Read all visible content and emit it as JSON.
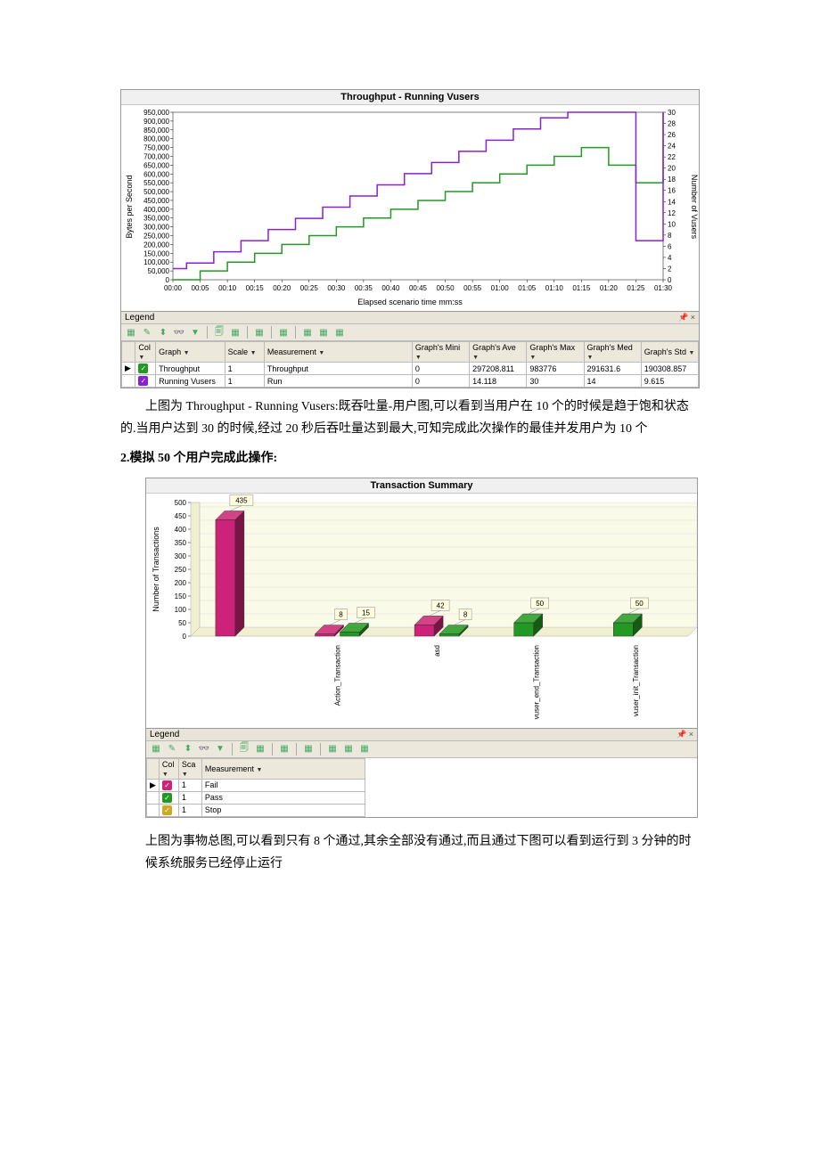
{
  "chart1": {
    "title": "Throughput - Running Vusers",
    "y1_label": "Bytes per Second",
    "y2_label": "Number of Vusers",
    "x_label": "Elapsed scenario time mm:ss",
    "y1_ticks": [
      "0",
      "50,000",
      "100,000",
      "150,000",
      "200,000",
      "250,000",
      "300,000",
      "350,000",
      "400,000",
      "450,000",
      "500,000",
      "550,000",
      "600,000",
      "650,000",
      "700,000",
      "750,000",
      "800,000",
      "850,000",
      "900,000",
      "950,000"
    ],
    "y2_ticks": [
      "0",
      "2",
      "4",
      "6",
      "8",
      "10",
      "12",
      "14",
      "16",
      "18",
      "20",
      "22",
      "24",
      "26",
      "28",
      "30"
    ],
    "x_ticks": [
      "00:00",
      "00:05",
      "00:10",
      "00:15",
      "00:20",
      "00:25",
      "00:30",
      "00:35",
      "00:40",
      "00:45",
      "00:50",
      "00:55",
      "01:00",
      "01:05",
      "01:10",
      "01:15",
      "01:20",
      "01:25",
      "01:30"
    ],
    "throughput_color": "#229922",
    "vusers_color": "#8822cc",
    "throughput_data": [
      [
        0,
        0
      ],
      [
        1,
        50000
      ],
      [
        2,
        100000
      ],
      [
        3,
        150000
      ],
      [
        4,
        200000
      ],
      [
        5,
        250000
      ],
      [
        6,
        300000
      ],
      [
        7,
        350000
      ],
      [
        8,
        400000
      ],
      [
        9,
        450000
      ],
      [
        10,
        500000
      ],
      [
        11,
        550000
      ],
      [
        12,
        600000
      ],
      [
        13,
        650000
      ],
      [
        14,
        700000
      ],
      [
        15,
        750000
      ],
      [
        16,
        650000
      ],
      [
        17,
        550000
      ],
      [
        18,
        950000
      ]
    ],
    "vusers_data": [
      [
        0,
        2
      ],
      [
        0.5,
        3
      ],
      [
        1,
        3
      ],
      [
        1.5,
        5
      ],
      [
        2,
        5
      ],
      [
        2.5,
        7
      ],
      [
        3,
        7
      ],
      [
        3.5,
        9
      ],
      [
        4,
        9
      ],
      [
        4.5,
        11
      ],
      [
        5,
        11
      ],
      [
        5.5,
        13
      ],
      [
        6,
        13
      ],
      [
        6.5,
        15
      ],
      [
        7,
        15
      ],
      [
        7.5,
        17
      ],
      [
        8,
        17
      ],
      [
        8.5,
        19
      ],
      [
        9,
        19
      ],
      [
        9.5,
        21
      ],
      [
        10,
        21
      ],
      [
        10.5,
        23
      ],
      [
        11,
        23
      ],
      [
        11.5,
        25
      ],
      [
        12,
        25
      ],
      [
        12.5,
        27
      ],
      [
        13,
        27
      ],
      [
        13.5,
        29
      ],
      [
        14,
        29
      ],
      [
        14.5,
        30
      ],
      [
        15,
        30
      ],
      [
        17,
        7
      ],
      [
        18,
        30
      ]
    ],
    "legend_label": "Legend",
    "table_headers": [
      "",
      "Col",
      "Graph",
      "Scale",
      "Measurement",
      "Graph's Mini",
      "Graph's Ave",
      "Graph's Max",
      "Graph's Med",
      "Graph's Std"
    ],
    "table_rows": [
      {
        "check_color": "#229922",
        "col": "",
        "graph": "Throughput",
        "scale": "1",
        "measurement": "Throughput",
        "min": "0",
        "ave": "297208.811",
        "max": "983776",
        "med": "291631.6",
        "std": "190308.857"
      },
      {
        "check_color": "#8822cc",
        "col": "",
        "graph": "Running Vusers",
        "scale": "1",
        "measurement": "Run",
        "min": "0",
        "ave": "14.118",
        "max": "30",
        "med": "14",
        "std": "9.615"
      }
    ]
  },
  "para1": "上图为 Throughput - Running Vusers:既吞吐量-用户图,可以看到当用户在 10 个的时候是趋于饱和状态的.当用户达到 30 的时候,经过 20 秒后吞吐量达到最大,可知完成此次操作的最佳并发用户为 10 个",
  "heading2": "2.模拟 50 个用户完成此操作:",
  "chart2": {
    "title": "Transaction Summary",
    "y_label": "Number of Transactions",
    "y_ticks": [
      "0",
      "50",
      "100",
      "150",
      "200",
      "250",
      "300",
      "350",
      "400",
      "450",
      "500"
    ],
    "categories": [
      "",
      "Action_Transaction",
      "asd",
      "vuser_end_Transaction",
      "vuser_init_Transaction"
    ],
    "bars": [
      {
        "cat": 0,
        "sub": 0,
        "val": 435,
        "color": "#cc2277",
        "label": "435"
      },
      {
        "cat": 1,
        "sub": 0,
        "val": 8,
        "color": "#cc2277",
        "label": "8"
      },
      {
        "cat": 1,
        "sub": 1,
        "val": 15,
        "color": "#229922",
        "label": "15"
      },
      {
        "cat": 2,
        "sub": 0,
        "val": 42,
        "color": "#cc2277",
        "label": "42"
      },
      {
        "cat": 2,
        "sub": 1,
        "val": 8,
        "color": "#229922",
        "label": "8"
      },
      {
        "cat": 3,
        "sub": 0,
        "val": 50,
        "color": "#229922",
        "label": "50"
      },
      {
        "cat": 4,
        "sub": 0,
        "val": 50,
        "color": "#229922",
        "label": "50"
      }
    ],
    "legend_label": "Legend",
    "table_headers": [
      "",
      "Col",
      "Sca",
      "Measurement"
    ],
    "table_rows": [
      {
        "check_color": "#cc2277",
        "sca": "1",
        "measurement": "Fail"
      },
      {
        "check_color": "#229922",
        "sca": "1",
        "measurement": "Pass"
      },
      {
        "check_color": "#ccaa22",
        "sca": "1",
        "measurement": "Stop"
      }
    ]
  },
  "para2": "上图为事物总图,可以看到只有 8 个通过,其余全部没有通过,而且通过下图可以看到运行到 3 分钟的时候系统服务已经停止运行"
}
